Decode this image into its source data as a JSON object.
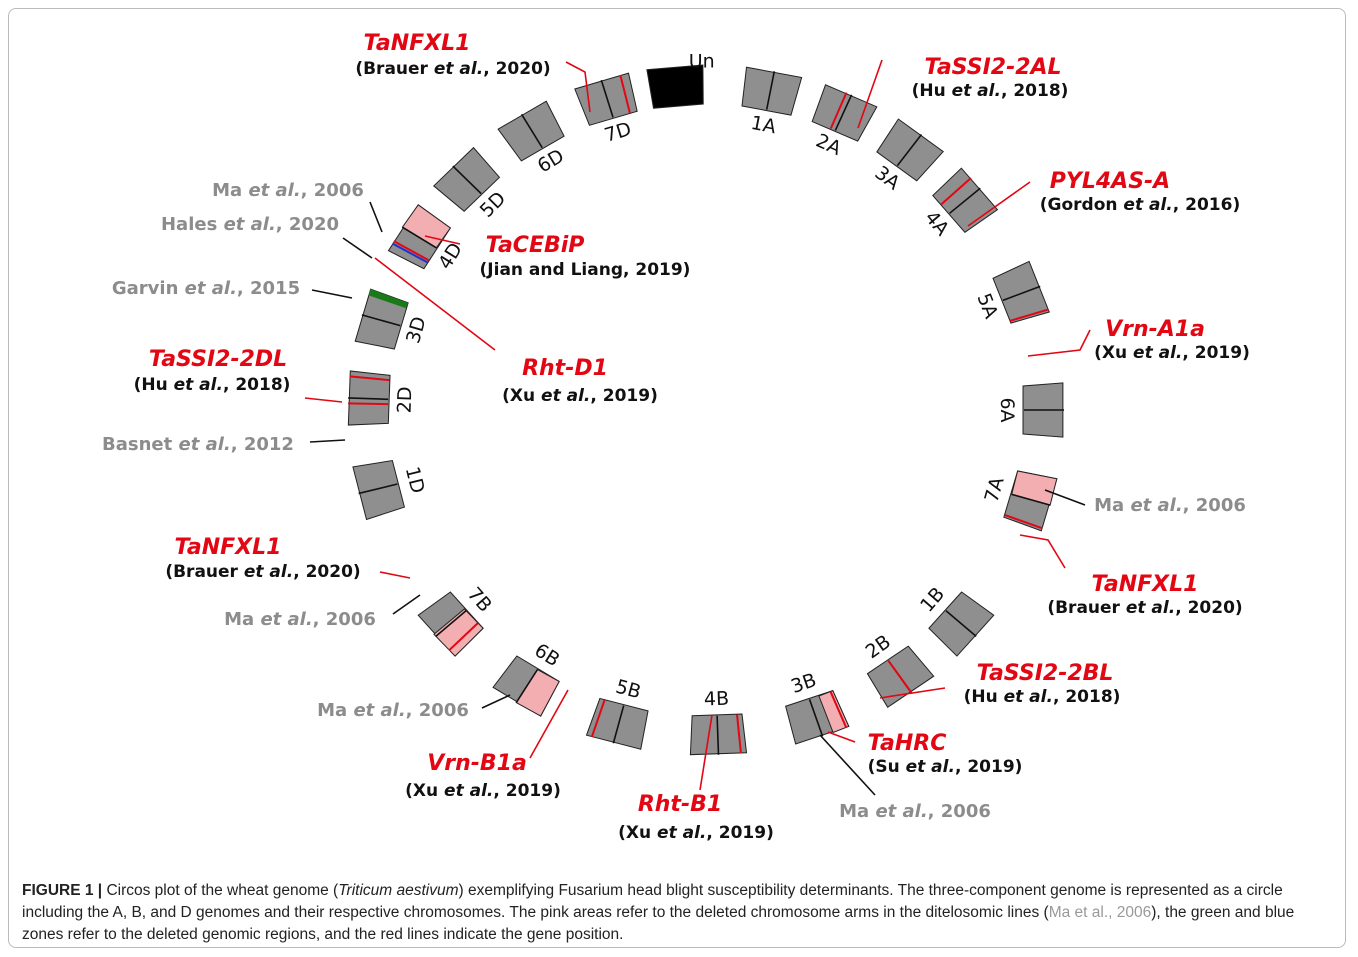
{
  "chromosomes": [
    "Un",
    "1A",
    "2A",
    "3A",
    "4A",
    "5A",
    "6A",
    "7A",
    "1B",
    "2B",
    "3B",
    "4B",
    "5B",
    "6B",
    "7B",
    "1D",
    "2D",
    "3D",
    "4D",
    "5D",
    "6D",
    "7D"
  ],
  "annotations": [
    {
      "gene": "TaNFXL1",
      "cite": [
        "(Brauer ",
        "et al.",
        ", 2020)"
      ]
    },
    {
      "gene": "TaSSI2-2AL",
      "cite": [
        "(Hu ",
        "et al.",
        ", 2018)"
      ]
    },
    {
      "gene": "PYL4AS-A",
      "cite": [
        "(Gordon ",
        "et al.",
        ", 2016)"
      ]
    },
    {
      "gene": "TaCEBiP",
      "cite": [
        "(Jian and Liang, 2019)"
      ]
    },
    {
      "gene": "Rht-D1",
      "cite": [
        "(Xu ",
        "et al.",
        ", 2019)"
      ]
    },
    {
      "gene": "Vrn-A1a",
      "cite": [
        "(Xu ",
        "et al.",
        ", 2019)"
      ]
    },
    {
      "gene": "TaSSI2-2DL",
      "cite": [
        "(Hu ",
        "et al.",
        ", 2018)"
      ]
    },
    {
      "gene": "TaNFXL1",
      "cite": [
        "(Brauer ",
        "et al.",
        ", 2020)"
      ]
    },
    {
      "gene": "TaNFXL1",
      "cite": [
        "(Brauer ",
        "et al.",
        ", 2020)"
      ]
    },
    {
      "gene": "TaSSI2-2BL",
      "cite": [
        "(Hu ",
        "et al.",
        ", 2018)"
      ]
    },
    {
      "gene": "TaHRC",
      "cite": [
        "(Su ",
        "et al.",
        ", 2019)"
      ]
    },
    {
      "gene": "Vrn-B1a",
      "cite": [
        "(Xu ",
        "et al.",
        ", 2019)"
      ]
    },
    {
      "gene": "Rht-B1",
      "cite": [
        "(Xu ",
        "et al.",
        ", 2019)"
      ]
    }
  ],
  "references": [
    [
      "Ma ",
      "et al.",
      ", 2006"
    ],
    [
      "Hales ",
      "et al.",
      ", 2020"
    ],
    [
      "Garvin ",
      "et al.",
      ", 2015"
    ],
    [
      "Basnet ",
      "et al.",
      ", 2012"
    ],
    [
      "Ma ",
      "et al.",
      ", 2006"
    ],
    [
      "Ma ",
      "et al.",
      ", 2006"
    ],
    [
      "Ma ",
      "et al.",
      ", 2006"
    ],
    [
      "Ma ",
      "et al.",
      ", 2006"
    ]
  ],
  "caption": {
    "label": "FIGURE 1 |",
    "parts": [
      " Circos plot of the wheat genome (",
      "Triticum aestivum",
      ") exemplifying Fusarium head blight susceptibility determinants. The three-component genome is represented as a circle including the A, B, and D genomes and their respective chromosomes. The pink areas refer to the deleted chromosome arms in the ditelosomic lines (",
      "Ma et al., 2006",
      "), the green and blue zones refer to the deleted genomic regions, and the red lines indicate the gene position."
    ]
  }
}
